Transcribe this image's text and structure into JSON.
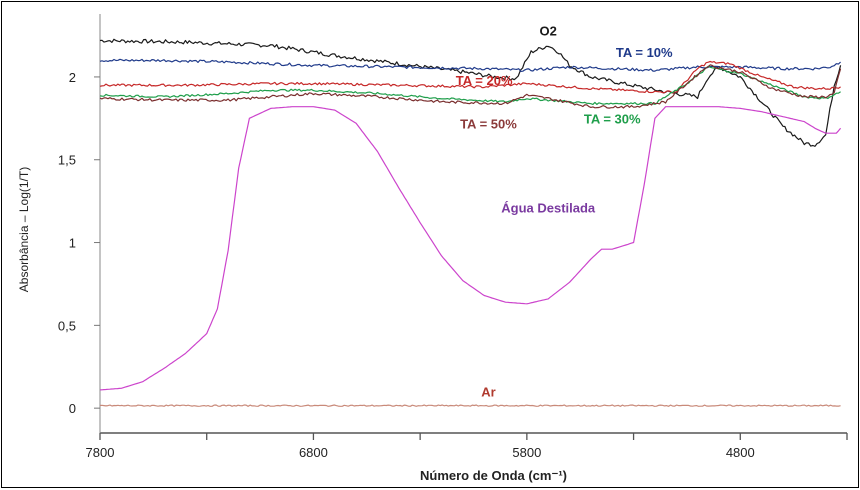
{
  "chart_data": {
    "type": "line",
    "title": "",
    "xlabel": "Número de Onda (cm⁻¹)",
    "ylabel": "Absorbância – Log(1/T)",
    "xlim": [
      7800,
      4300
    ],
    "ylim": [
      -0.15,
      2.38
    ],
    "x_reversed": true,
    "x_ticks": [
      7800,
      6800,
      5800,
      4800
    ],
    "x_tick_labels": [
      "7800",
      "6800",
      "5800",
      "4800"
    ],
    "y_ticks": [
      0,
      0.5,
      1,
      1.5,
      2
    ],
    "y_tick_labels": [
      "0",
      "0,5",
      "1",
      "1,5",
      "2"
    ],
    "grid": false,
    "legend": "none",
    "annotations": [
      {
        "text": "O2",
        "x": 5700,
        "y": 2.25,
        "color": "#1a1a1a"
      },
      {
        "text": "TA = 10%",
        "x": 5250,
        "y": 2.12,
        "color": "#1f3a8a"
      },
      {
        "text": "TA = 20%",
        "x": 6000,
        "y": 1.95,
        "color": "#c62828"
      },
      {
        "text": "TA = 50%",
        "x": 5980,
        "y": 1.69,
        "color": "#8b3a3a"
      },
      {
        "text": "TA = 30%",
        "x": 5400,
        "y": 1.72,
        "color": "#1e9e4a"
      },
      {
        "text": "Água Destilada",
        "x": 5700,
        "y": 1.18,
        "color": "#7a3aa0"
      },
      {
        "text": "Ar",
        "x": 5980,
        "y": 0.07,
        "color": "#b03a2e"
      }
    ],
    "series": [
      {
        "color": "#1a1a1a",
        "noise": 0.012,
        "x": [
          7800,
          7400,
          7000,
          6700,
          6400,
          6100,
          5950,
          5850,
          5780,
          5700,
          5650,
          5600,
          5500,
          5350,
          5150,
          5000,
          4950,
          4900,
          4800,
          4700,
          4600,
          4500,
          4450,
          4400,
          4360,
          4330
        ],
        "y": [
          2.22,
          2.21,
          2.19,
          2.13,
          2.08,
          2.03,
          2.0,
          1.99,
          2.15,
          2.19,
          2.15,
          2.07,
          2.0,
          1.96,
          1.91,
          1.88,
          2.0,
          2.06,
          2.0,
          1.85,
          1.7,
          1.6,
          1.59,
          1.65,
          1.95,
          2.07
        ]
      },
      {
        "color": "#1f3a8a",
        "noise": 0.008,
        "x": [
          7800,
          7500,
          7200,
          6800,
          6400,
          6000,
          5800,
          5600,
          5400,
          5200,
          5000,
          4800,
          4600,
          4450,
          4380,
          4330
        ],
        "y": [
          2.1,
          2.1,
          2.09,
          2.07,
          2.06,
          2.05,
          2.04,
          2.06,
          2.05,
          2.04,
          2.06,
          2.06,
          2.05,
          2.05,
          2.06,
          2.09
        ]
      },
      {
        "color": "#c62828",
        "noise": 0.007,
        "x": [
          7800,
          7400,
          7000,
          6800,
          6400,
          6000,
          5800,
          5500,
          5200,
          5100,
          5000,
          4950,
          4850,
          4700,
          4550,
          4450,
          4380,
          4330
        ],
        "y": [
          1.95,
          1.95,
          1.96,
          1.96,
          1.95,
          1.94,
          1.96,
          1.93,
          1.91,
          1.91,
          2.05,
          2.09,
          2.08,
          2.0,
          1.94,
          1.93,
          1.93,
          1.94
        ]
      },
      {
        "color": "#1e9e4a",
        "noise": 0.006,
        "x": [
          7800,
          7500,
          7200,
          7000,
          6800,
          6500,
          6200,
          5900,
          5800,
          5700,
          5500,
          5200,
          5050,
          4950,
          4800,
          4650,
          4500,
          4400,
          4330
        ],
        "y": [
          1.89,
          1.88,
          1.9,
          1.92,
          1.92,
          1.9,
          1.87,
          1.85,
          1.87,
          1.86,
          1.84,
          1.84,
          1.96,
          2.06,
          2.02,
          1.95,
          1.88,
          1.87,
          1.91
        ]
      },
      {
        "color": "#7a2e2e",
        "noise": 0.008,
        "x": [
          7800,
          7500,
          7200,
          7000,
          6800,
          6500,
          6200,
          5900,
          5800,
          5700,
          5500,
          5300,
          5150,
          5050,
          4950,
          4800,
          4650,
          4500,
          4400,
          4360,
          4330
        ],
        "y": [
          1.87,
          1.86,
          1.86,
          1.88,
          1.9,
          1.88,
          1.85,
          1.84,
          1.89,
          1.87,
          1.82,
          1.82,
          1.85,
          1.96,
          2.07,
          2.03,
          1.93,
          1.88,
          1.88,
          1.9,
          2.05
        ]
      },
      {
        "color": "#cc44cc",
        "noise": 0,
        "x": [
          7800,
          7700,
          7600,
          7500,
          7400,
          7300,
          7250,
          7200,
          7150,
          7100,
          7000,
          6900,
          6800,
          6700,
          6600,
          6500,
          6400,
          6300,
          6200,
          6100,
          6000,
          5900,
          5800,
          5700,
          5600,
          5500,
          5450,
          5400,
          5300,
          5250,
          5200,
          5150,
          5100,
          5050,
          5000,
          4900,
          4800,
          4700,
          4600,
          4500,
          4450,
          4400,
          4350,
          4330
        ],
        "y": [
          0.11,
          0.12,
          0.16,
          0.24,
          0.33,
          0.45,
          0.6,
          0.95,
          1.45,
          1.75,
          1.81,
          1.82,
          1.82,
          1.8,
          1.72,
          1.55,
          1.33,
          1.12,
          0.92,
          0.77,
          0.68,
          0.64,
          0.63,
          0.66,
          0.76,
          0.9,
          0.96,
          0.96,
          1.0,
          1.35,
          1.75,
          1.82,
          1.82,
          1.82,
          1.82,
          1.82,
          1.81,
          1.79,
          1.76,
          1.73,
          1.69,
          1.66,
          1.66,
          1.69
        ]
      },
      {
        "color": "#c98a7a",
        "noise": 0.004,
        "x": [
          7800,
          4330
        ],
        "y": [
          0.015,
          0.015
        ]
      }
    ]
  }
}
